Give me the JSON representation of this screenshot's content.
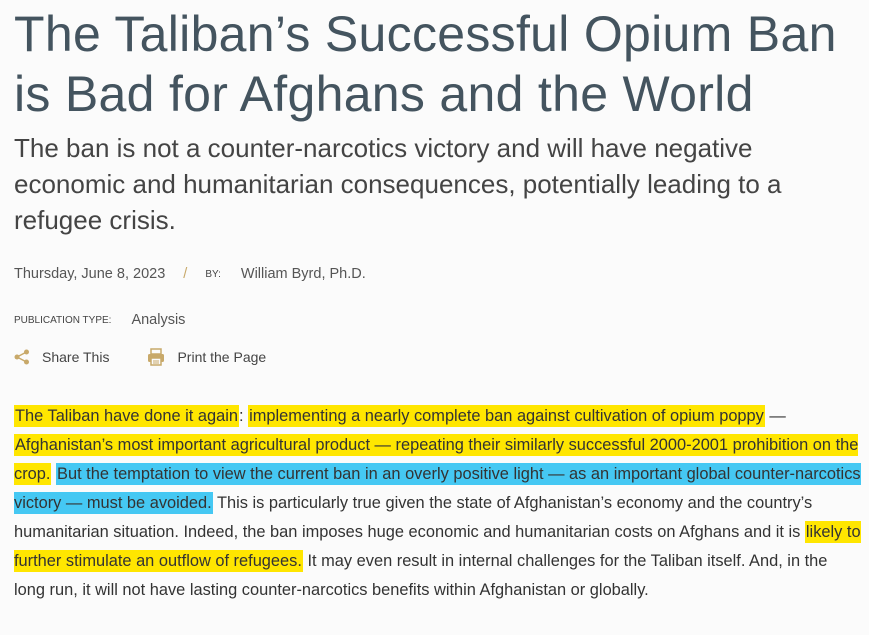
{
  "article": {
    "title": "The Taliban’s Successful Opium Ban is Bad for Afghans and the World",
    "subtitle": "The ban is not a counter-narcotics victory and will have negative economic and humanitarian consequences, potentially leading to a refugee crisis.",
    "date": "Thursday, June 8, 2023",
    "separator": "/",
    "by_label": "BY:",
    "author": "William Byrd, Ph.D.",
    "publication_type_label": "PUBLICATION TYPE:",
    "publication_type": "Analysis",
    "share_label": "Share This",
    "print_label": "Print the Page",
    "icons": {
      "share": "share-icon",
      "print": "printer-icon"
    },
    "highlight_colors": {
      "yellow": "#ffe600",
      "blue": "#45c8f3"
    },
    "body_segments": [
      {
        "text": "The Taliban have done it again",
        "highlight": "yellow"
      },
      {
        "text": ": ",
        "highlight": "none"
      },
      {
        "text": "implementing a nearly complete ban against cultivation of opium poppy",
        "highlight": "yellow"
      },
      {
        "text": " — ",
        "highlight": "none"
      },
      {
        "text": "Afghanistan’s most important agricultural product — repeating their similarly successful 2000-2001 prohibition on the crop.",
        "highlight": "yellow"
      },
      {
        "text": " ",
        "highlight": "none"
      },
      {
        "text": "But the temptation to view the current ban in an overly positive light — as an important global counter-narcotics victory — must be avoided.",
        "highlight": "blue"
      },
      {
        "text": " This is particularly true given the state of Afghanistan’s economy and the country’s humanitarian situation. Indeed, the ban imposes huge economic and humanitarian costs on Afghans and it is ",
        "highlight": "none"
      },
      {
        "text": "likely to further stimulate an outflow of refugees.",
        "highlight": "yellow"
      },
      {
        "text": " It may even result in internal challenges for the Taliban itself. And, in the long run, it will not have lasting counter-narcotics benefits within Afghanistan or globally.",
        "highlight": "none"
      }
    ]
  }
}
